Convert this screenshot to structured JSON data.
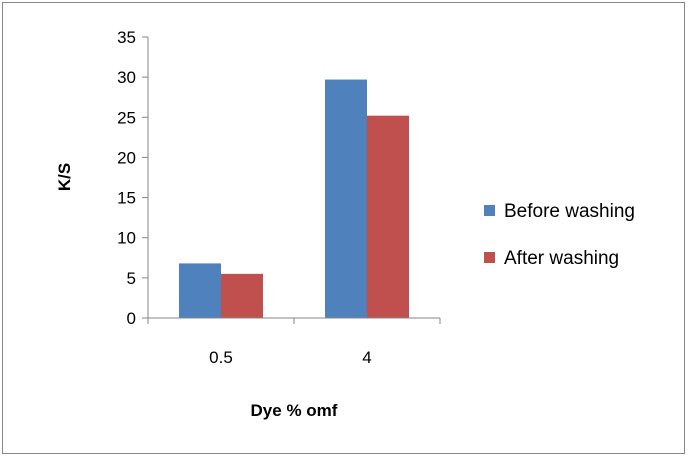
{
  "chart_data": {
    "type": "bar",
    "title": "",
    "xlabel": "Dye % omf",
    "ylabel": "K/S",
    "categories": [
      "0.5",
      "4"
    ],
    "series": [
      {
        "name": "Before washing",
        "values": [
          6.8,
          29.7
        ],
        "color": "#4F81BD"
      },
      {
        "name": "After washing",
        "values": [
          5.5,
          25.2
        ],
        "color": "#C0504D"
      }
    ],
    "ylim": [
      0,
      35
    ],
    "yticks": [
      "0",
      "5",
      "10",
      "15",
      "20",
      "25",
      "30",
      "35"
    ],
    "grid": false,
    "legend_position": "right"
  }
}
